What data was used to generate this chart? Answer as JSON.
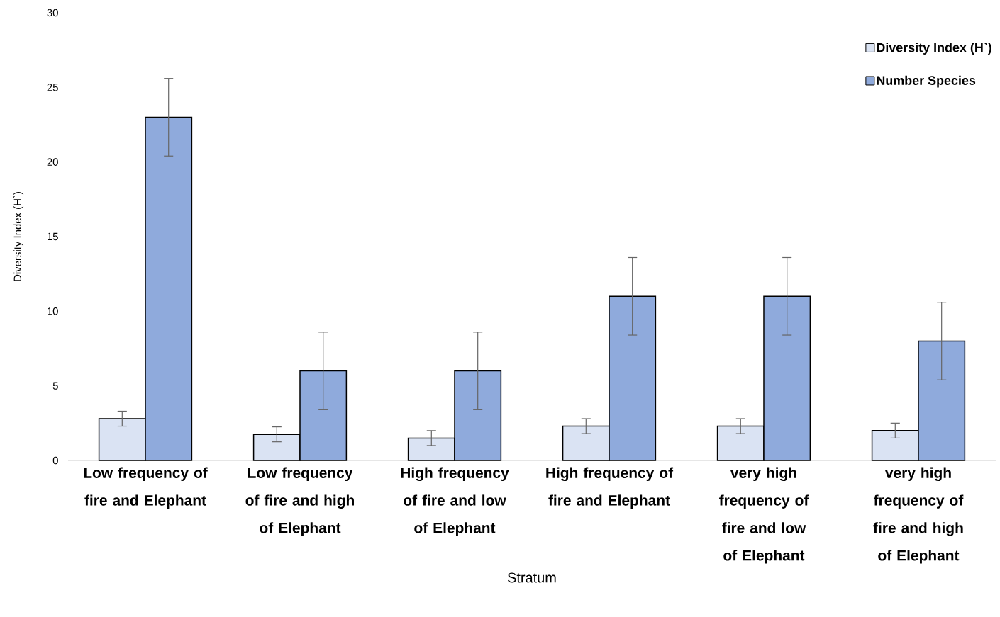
{
  "chart_data": {
    "type": "bar",
    "xlabel": "Stratum",
    "ylabel": "Diversity Index (H`)",
    "categories": [
      "Low frequency of fire and Elephant",
      "Low frequency of fire and high of Elephant",
      "High frequency of fire and low of Elephant",
      "High frequency of fire and Elephant",
      "very high frequency of fire and low of Elephant",
      "very high frequency of fire and high of Elephant"
    ],
    "series": [
      {
        "name": "Diversity Index (H`)",
        "color": "#dae3f3",
        "values": [
          2.8,
          1.75,
          1.5,
          2.3,
          2.3,
          2.0
        ],
        "errors": [
          0.5,
          0.5,
          0.5,
          0.5,
          0.5,
          0.5
        ]
      },
      {
        "name": "Number Species",
        "color": "#8faadc",
        "values": [
          23,
          6,
          6,
          11,
          11,
          8
        ],
        "errors": [
          2.6,
          2.6,
          2.6,
          2.6,
          2.6,
          2.6
        ]
      }
    ],
    "ylim": [
      0,
      30
    ],
    "yticks": [
      0,
      5,
      10,
      15,
      20,
      25,
      30
    ],
    "legend": "top right"
  }
}
